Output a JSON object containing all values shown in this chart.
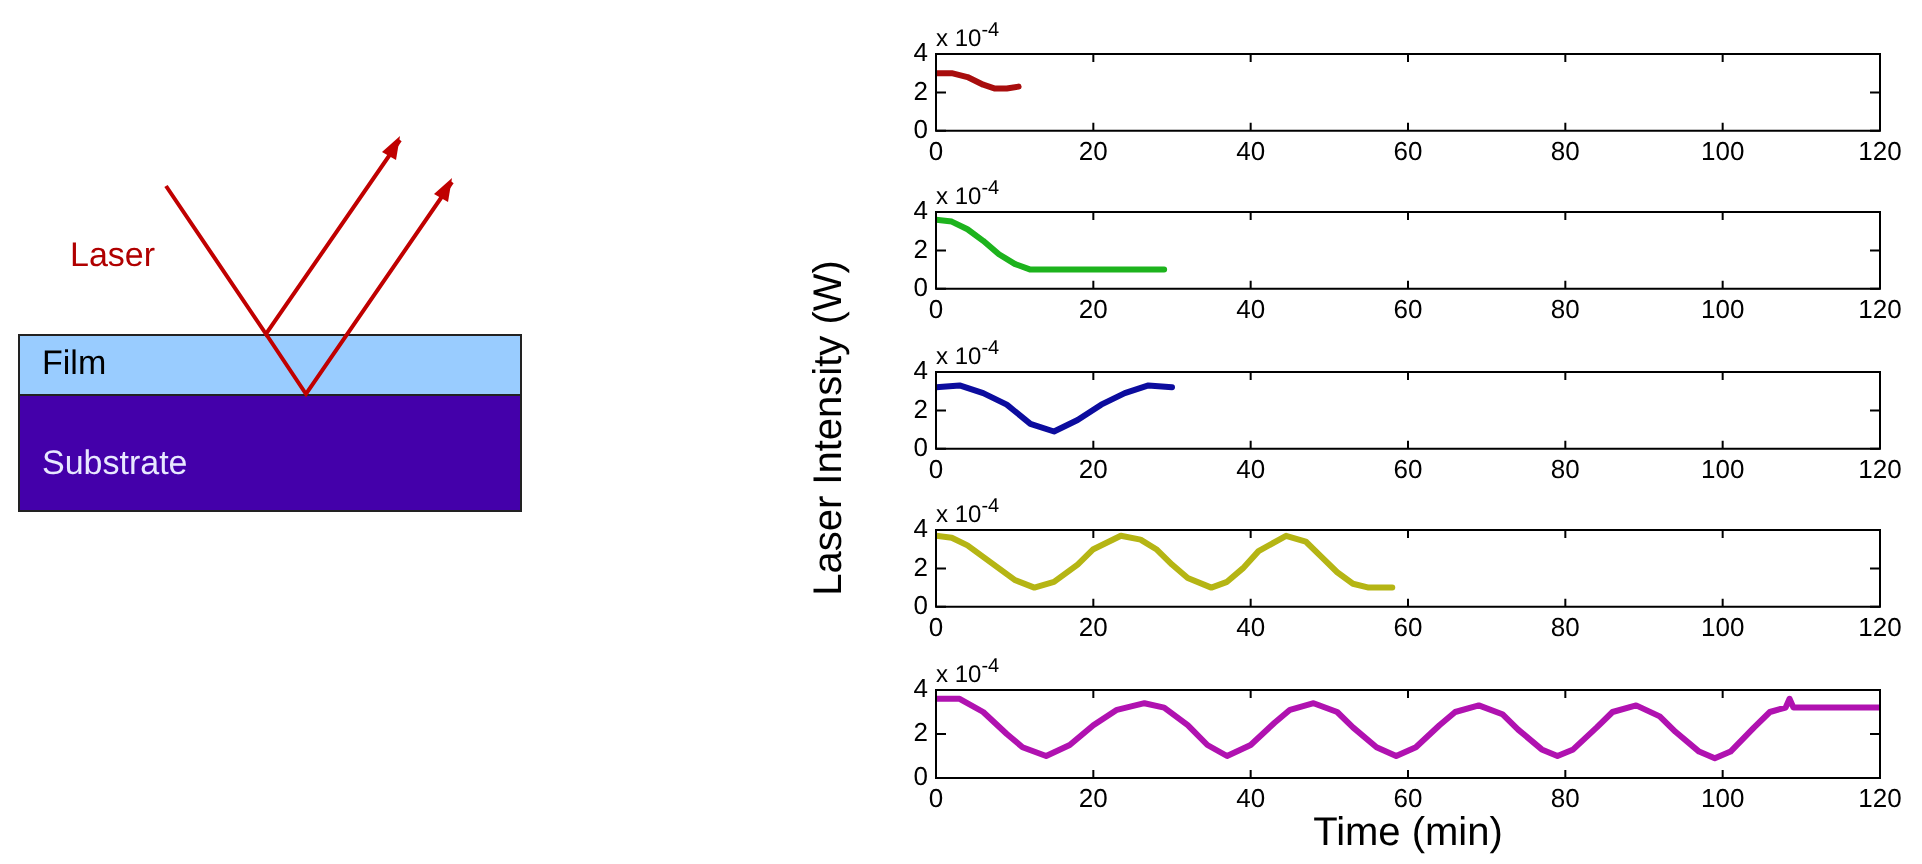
{
  "chart_data": [
    {
      "type": "other",
      "annotations": [
        "Laser",
        "Film",
        "Substrate"
      ]
    },
    {
      "type": "line",
      "x": [
        0,
        2,
        4,
        6,
        7.5,
        9,
        10.5
      ],
      "series": [
        {
          "color": "#a80d0d",
          "values": [
            3.0,
            3.0,
            2.8,
            2.4,
            2.2,
            2.2,
            2.3
          ]
        }
      ],
      "xlim": [
        0,
        120
      ],
      "xticks": [
        0,
        20,
        40,
        60,
        80,
        100,
        120
      ],
      "ylim": [
        0,
        4
      ],
      "yticks": [
        0,
        2,
        4
      ],
      "annotations": [
        "x 10$^{-4}$"
      ],
      "legend": false,
      "grid": false
    },
    {
      "type": "line",
      "x": [
        0,
        2,
        4,
        6,
        8,
        10,
        12,
        15,
        20,
        25,
        29
      ],
      "series": [
        {
          "color": "#1db31d",
          "values": [
            3.6,
            3.5,
            3.1,
            2.5,
            1.8,
            1.3,
            1.0,
            1.0,
            1.0,
            1.0,
            1.0
          ]
        }
      ],
      "xlim": [
        0,
        120
      ],
      "xticks": [
        0,
        20,
        40,
        60,
        80,
        100,
        120
      ],
      "ylim": [
        0,
        4
      ],
      "yticks": [
        0,
        2,
        4
      ],
      "annotations": [
        "x 10$^{-4}$"
      ],
      "legend": false,
      "grid": false
    },
    {
      "type": "line",
      "x": [
        0,
        3,
        6,
        9,
        12,
        15,
        18,
        21,
        24,
        27,
        30
      ],
      "series": [
        {
          "color": "#0c0c9e",
          "values": [
            3.2,
            3.3,
            2.9,
            2.3,
            1.3,
            0.9,
            1.5,
            2.3,
            2.9,
            3.3,
            3.2
          ]
        }
      ],
      "xlim": [
        0,
        120
      ],
      "xticks": [
        0,
        20,
        40,
        60,
        80,
        100,
        120
      ],
      "ylim": [
        0,
        4
      ],
      "yticks": [
        0,
        2,
        4
      ],
      "ylabel": "Laser Intensity (W)",
      "annotations": [
        "x 10$^{-4}$"
      ],
      "legend": false,
      "grid": false
    },
    {
      "type": "line",
      "x": [
        0,
        2,
        4,
        6,
        8,
        10,
        12.5,
        15,
        18,
        20,
        23.5,
        26,
        28,
        30,
        32,
        35,
        37,
        39,
        41,
        44.5,
        47,
        49,
        51,
        53,
        55,
        58
      ],
      "series": [
        {
          "color": "#b5b514",
          "values": [
            3.7,
            3.6,
            3.2,
            2.6,
            2.0,
            1.4,
            1.0,
            1.3,
            2.2,
            3.0,
            3.7,
            3.5,
            3.0,
            2.2,
            1.5,
            1.0,
            1.3,
            2.0,
            2.9,
            3.7,
            3.4,
            2.6,
            1.8,
            1.2,
            1.0,
            1.0
          ]
        }
      ],
      "xlim": [
        0,
        120
      ],
      "xticks": [
        0,
        20,
        40,
        60,
        80,
        100,
        120
      ],
      "ylim": [
        0,
        4
      ],
      "yticks": [
        0,
        2,
        4
      ],
      "annotations": [
        "x 10$^{-4}$"
      ],
      "legend": false,
      "grid": false
    },
    {
      "type": "line",
      "x": [
        0,
        3,
        6,
        9,
        11,
        14,
        17,
        20,
        23,
        26.5,
        29,
        32,
        34.5,
        37,
        40,
        43,
        45,
        48,
        51,
        53,
        56,
        58.5,
        61,
        64,
        66,
        69,
        72,
        74,
        77,
        79,
        81,
        84,
        86,
        89,
        92,
        94,
        97,
        99,
        101,
        104,
        106,
        108,
        108.5,
        109,
        112,
        120
      ],
      "series": [
        {
          "color": "#b012b0",
          "values": [
            3.6,
            3.6,
            3.0,
            2.0,
            1.4,
            1.0,
            1.5,
            2.4,
            3.1,
            3.4,
            3.2,
            2.4,
            1.5,
            1.0,
            1.5,
            2.5,
            3.1,
            3.4,
            3.0,
            2.3,
            1.4,
            1.0,
            1.4,
            2.4,
            3.0,
            3.3,
            2.9,
            2.2,
            1.3,
            1.0,
            1.3,
            2.3,
            3.0,
            3.3,
            2.8,
            2.1,
            1.2,
            0.9,
            1.2,
            2.3,
            3.0,
            3.2,
            3.6,
            3.2,
            3.2,
            3.2
          ]
        }
      ],
      "xlim": [
        0,
        120
      ],
      "xticks": [
        0,
        20,
        40,
        60,
        80,
        100,
        120
      ],
      "ylim": [
        0,
        4
      ],
      "yticks": [
        0,
        2,
        4
      ],
      "xlabel": "Time (min)",
      "annotations": [
        "x 10$^{-4}$"
      ],
      "legend": false,
      "grid": false
    }
  ]
}
